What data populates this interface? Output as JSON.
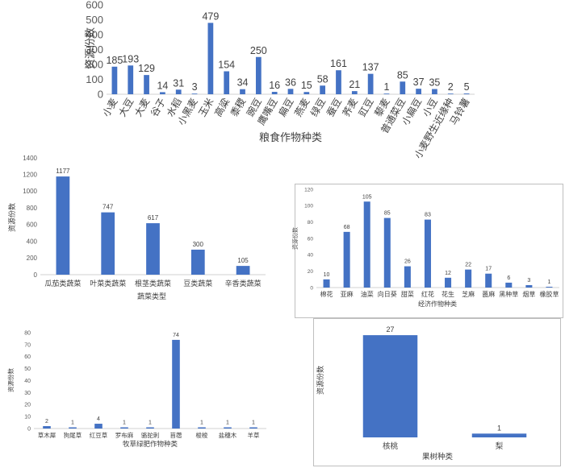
{
  "chart_data": [
    {
      "type": "bar",
      "xlabel": "粮食作物种类",
      "ylabel": "资源份数",
      "ylim": [
        0,
        600
      ],
      "yticks": [
        0,
        100,
        200,
        300,
        400,
        500,
        600
      ],
      "categories": [
        "小麦",
        "大豆",
        "大麦",
        "谷子",
        "水稻",
        "小黑麦",
        "玉米",
        "高粱",
        "黍稷",
        "豌豆",
        "鹰嘴豆",
        "扁豆",
        "燕麦",
        "绿豆",
        "蚕豆",
        "荞麦",
        "豇豆",
        "藜麦",
        "普通菜豆",
        "小扁豆",
        "小豆",
        "小麦野生近缘种",
        "马铃薯"
      ],
      "values": [
        185,
        193,
        129,
        14,
        31,
        3,
        479,
        154,
        34,
        250,
        16,
        36,
        15,
        58,
        161,
        21,
        137,
        1,
        85,
        37,
        35,
        2,
        5
      ],
      "grid": false,
      "legend": "none"
    },
    {
      "type": "bar",
      "xlabel": "蔬菜类型",
      "ylabel": "资源份数",
      "ylim": [
        0,
        1400
      ],
      "yticks": [
        0,
        200,
        400,
        600,
        800,
        1000,
        1200,
        1400
      ],
      "categories": [
        "瓜茄类蔬菜",
        "叶菜类蔬菜",
        "根茎类蔬菜",
        "豆类蔬菜",
        "辛香类蔬菜"
      ],
      "values": [
        1177,
        747,
        617,
        300,
        105
      ],
      "grid": false,
      "legend": "none"
    },
    {
      "type": "bar",
      "xlabel": "经济作物种类",
      "ylabel": "资源份数",
      "ylim": [
        0,
        120
      ],
      "yticks": [
        0,
        20,
        40,
        60,
        80,
        100,
        120
      ],
      "categories": [
        "棉花",
        "亚麻",
        "油菜",
        "向日葵",
        "甜菜",
        "红花",
        "花生",
        "芝麻",
        "蓖麻",
        "黑种草",
        "烟草",
        "橡胶草"
      ],
      "values": [
        10,
        68,
        105,
        85,
        26,
        83,
        12,
        22,
        17,
        6,
        3,
        1
      ],
      "grid": false,
      "legend": "none"
    },
    {
      "type": "bar",
      "xlabel": "牧草绿肥作物种类",
      "ylabel": "资源份数",
      "ylim": [
        0,
        80
      ],
      "yticks": [
        0,
        10,
        20,
        30,
        40,
        50,
        60,
        70,
        80
      ],
      "categories": [
        "草木犀",
        "狗尾草",
        "红豆草",
        "罗布麻",
        "骆驼刺",
        "苜蓿",
        "梭梭",
        "盐穗木",
        "羊草"
      ],
      "values": [
        2,
        1,
        4,
        1,
        1,
        74,
        1,
        1,
        1
      ],
      "grid": false,
      "legend": "none"
    },
    {
      "type": "bar",
      "xlabel": "果树种类",
      "ylabel": "资源份数",
      "ylim": [
        0,
        30
      ],
      "yticks": [],
      "categories": [
        "核桃",
        "梨"
      ],
      "values": [
        27,
        1
      ],
      "grid": false,
      "legend": "none"
    }
  ]
}
